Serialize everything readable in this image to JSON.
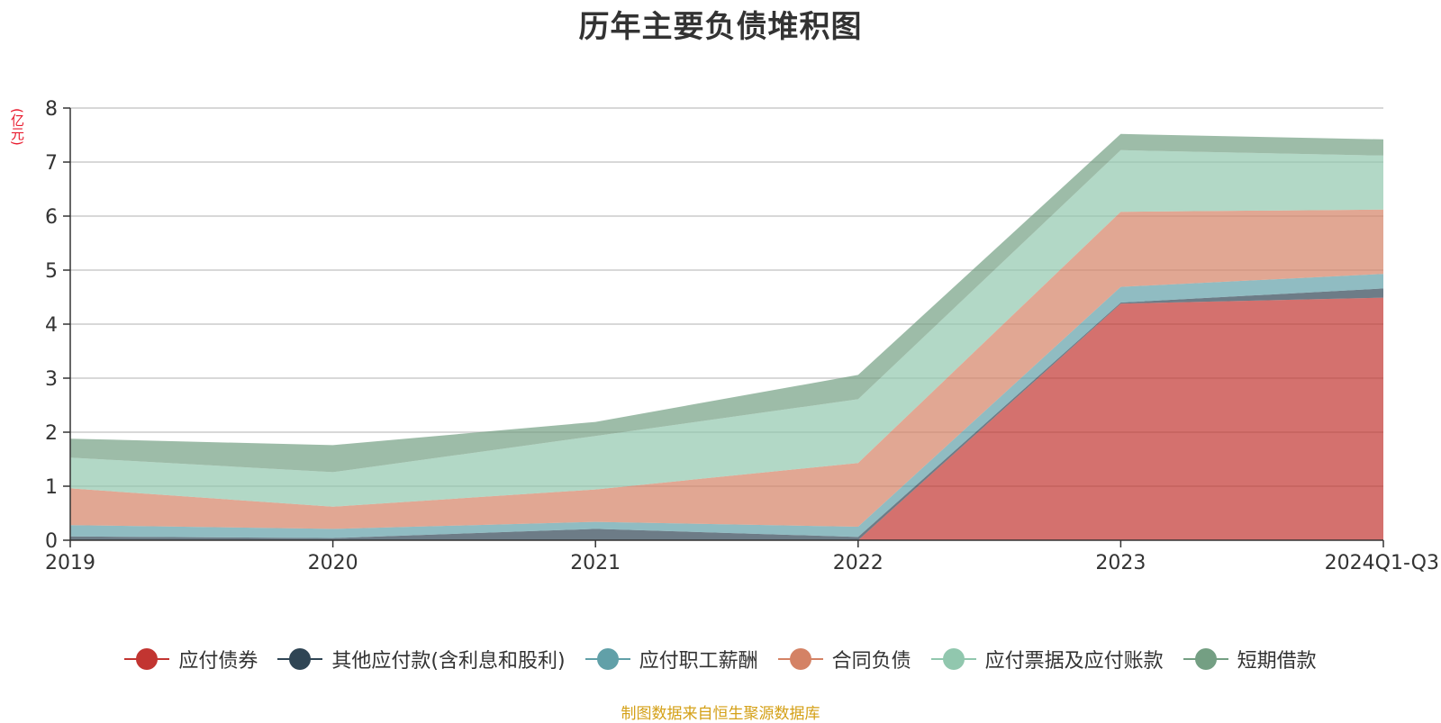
{
  "chart_data": {
    "type": "area",
    "stacked": true,
    "title": "历年主要负债堆积图",
    "yunit": "(亿元)",
    "ylim": [
      0,
      8
    ],
    "yticks": [
      0,
      1,
      2,
      3,
      4,
      5,
      6,
      7,
      8
    ],
    "categories": [
      "2019",
      "2020",
      "2021",
      "2022",
      "2023",
      "2024Q1-Q3"
    ],
    "series": [
      {
        "name": "应付债券",
        "color": "#c23531",
        "values": [
          0,
          0,
          0,
          0,
          4.38,
          4.49
        ]
      },
      {
        "name": "其他应付款(含利息和股利)",
        "color": "#2f4554",
        "values": [
          0.07,
          0.04,
          0.21,
          0.06,
          0.02,
          0.17
        ]
      },
      {
        "name": "应付职工薪酬",
        "color": "#61a0a8",
        "values": [
          0.21,
          0.17,
          0.13,
          0.19,
          0.29,
          0.27
        ]
      },
      {
        "name": "合同负债",
        "color": "#d48265",
        "values": [
          0.68,
          0.41,
          0.6,
          1.18,
          1.39,
          1.19
        ]
      },
      {
        "name": "应付票据及应付账款",
        "color": "#91c7ae",
        "values": [
          0.57,
          0.64,
          0.99,
          1.18,
          1.14,
          1.0
        ]
      },
      {
        "name": "短期借款",
        "color": "#749f83",
        "values": [
          0.35,
          0.5,
          0.26,
          0.45,
          0.3,
          0.3
        ]
      }
    ],
    "source": "制图数据来自恒生聚源数据库"
  }
}
